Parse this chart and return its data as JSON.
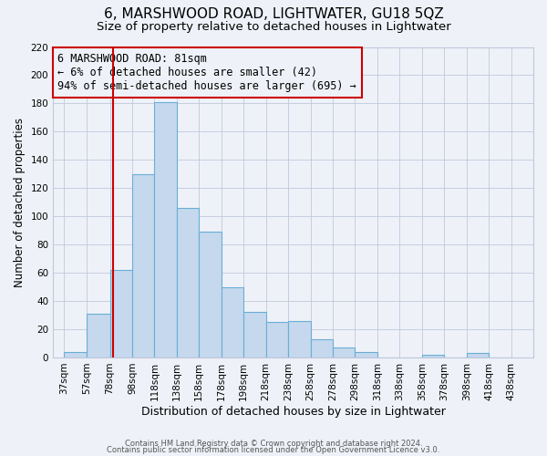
{
  "title": "6, MARSHWOOD ROAD, LIGHTWATER, GU18 5QZ",
  "subtitle": "Size of property relative to detached houses in Lightwater",
  "xlabel": "Distribution of detached houses by size in Lightwater",
  "ylabel": "Number of detached properties",
  "bar_left_edges": [
    37,
    57,
    78,
    98,
    118,
    138,
    158,
    178,
    198,
    218,
    238,
    258,
    278,
    298,
    318,
    338,
    358,
    378,
    398,
    418
  ],
  "bar_widths": [
    20,
    21,
    20,
    20,
    20,
    20,
    20,
    20,
    20,
    20,
    20,
    20,
    20,
    20,
    20,
    20,
    20,
    20,
    20,
    20
  ],
  "bar_heights": [
    4,
    31,
    62,
    130,
    181,
    106,
    89,
    50,
    32,
    25,
    26,
    13,
    7,
    4,
    0,
    0,
    2,
    0,
    3,
    0
  ],
  "tick_labels": [
    "37sqm",
    "57sqm",
    "78sqm",
    "98sqm",
    "118sqm",
    "138sqm",
    "158sqm",
    "178sqm",
    "198sqm",
    "218sqm",
    "238sqm",
    "258sqm",
    "278sqm",
    "298sqm",
    "318sqm",
    "338sqm",
    "358sqm",
    "378sqm",
    "398sqm",
    "418sqm",
    "438sqm"
  ],
  "tick_positions": [
    37,
    57,
    78,
    98,
    118,
    138,
    158,
    178,
    198,
    218,
    238,
    258,
    278,
    298,
    318,
    338,
    358,
    378,
    398,
    418,
    438
  ],
  "bar_color": "#c5d8ed",
  "bar_edge_color": "#6aaed6",
  "vline_x": 81,
  "vline_color": "#cc0000",
  "annotation_line1": "6 MARSHWOOD ROAD: 81sqm",
  "annotation_line2": "← 6% of detached houses are smaller (42)",
  "annotation_line3": "94% of semi-detached houses are larger (695) →",
  "annotation_box_color": "#cc0000",
  "ylim": [
    0,
    220
  ],
  "yticks": [
    0,
    20,
    40,
    60,
    80,
    100,
    120,
    140,
    160,
    180,
    200,
    220
  ],
  "grid_color": "#c0c8dc",
  "background_color": "#eef2f8",
  "footer_line1": "Contains HM Land Registry data © Crown copyright and database right 2024.",
  "footer_line2": "Contains public sector information licensed under the Open Government Licence v3.0.",
  "title_fontsize": 11,
  "subtitle_fontsize": 9.5,
  "xlabel_fontsize": 9,
  "ylabel_fontsize": 8.5,
  "tick_fontsize": 7.5,
  "footer_fontsize": 6,
  "xmin": 27,
  "xmax": 458
}
